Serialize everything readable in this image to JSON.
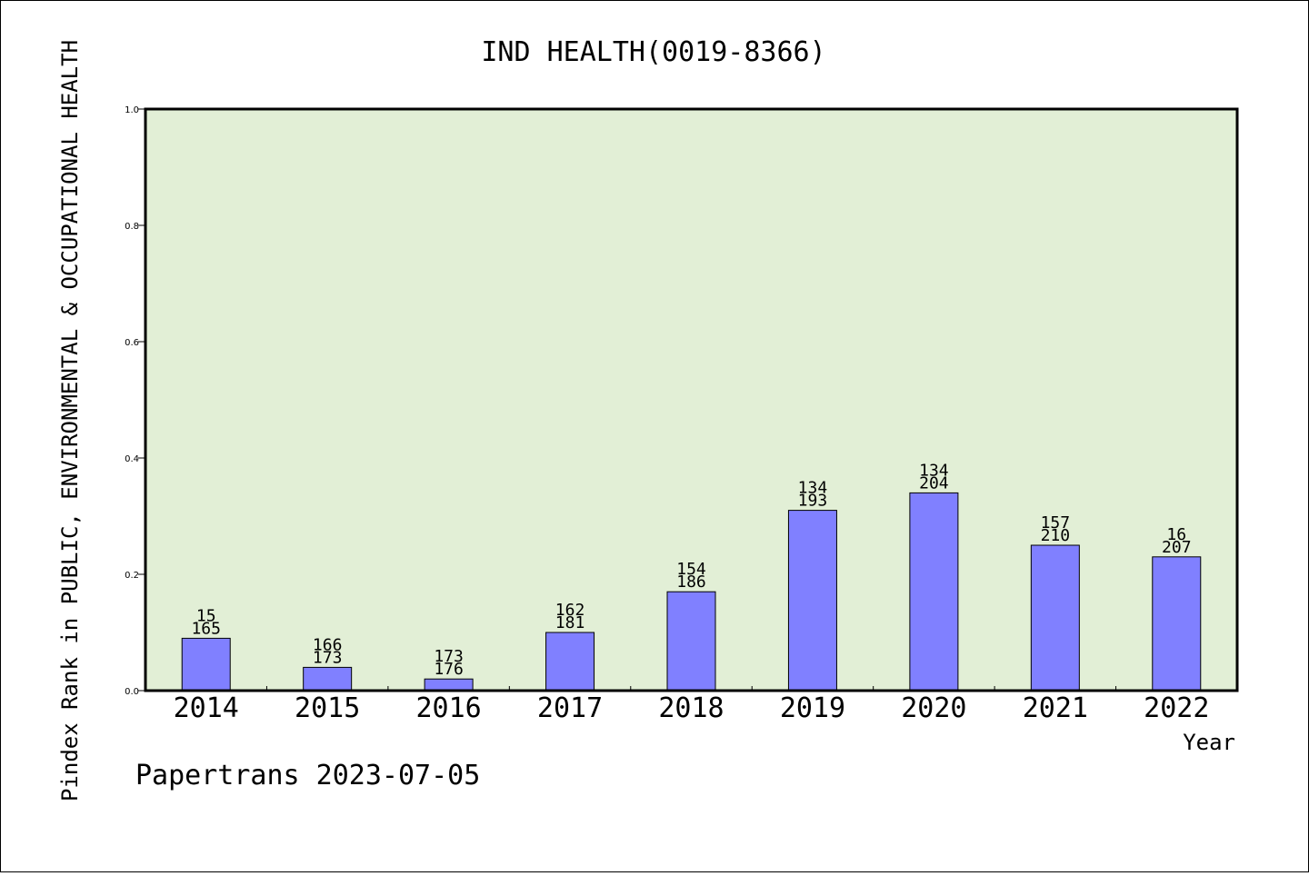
{
  "chart_data": {
    "type": "bar",
    "title": "IND HEALTH(0019-8366)",
    "ylabel": "Pindex Rank in PUBLIC, ENVIRONMENTAL & OCCUPATIONAL HEALTH",
    "xlabel": "Year",
    "ylim": [
      0,
      1.0
    ],
    "yticks": [
      "0.0",
      "0.2",
      "0.4",
      "0.6",
      "0.8",
      "1.0"
    ],
    "categories": [
      "2014",
      "2015",
      "2016",
      "2017",
      "2018",
      "2019",
      "2020",
      "2021",
      "2022"
    ],
    "values": [
      0.09,
      0.04,
      0.02,
      0.1,
      0.17,
      0.31,
      0.34,
      0.25,
      0.23
    ],
    "rank_labels": [
      "15",
      "166",
      "173",
      "162",
      "154",
      "134",
      "134",
      "157",
      "16"
    ],
    "total_labels": [
      "165",
      "173",
      "176",
      "181",
      "186",
      "193",
      "204",
      "210",
      "207"
    ],
    "bar_color": "#8080ff",
    "plot_background": "#e2efd6",
    "grid": false
  },
  "footer": "Papertrans 2023-07-05"
}
